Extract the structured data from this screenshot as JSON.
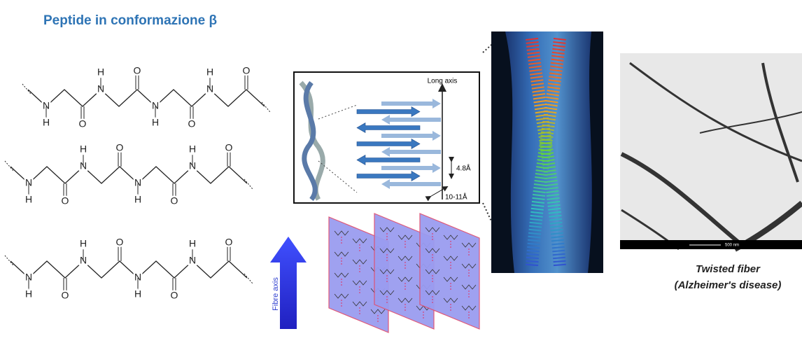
{
  "title": "Peptide in conformazione β",
  "peptides": [
    {
      "atoms": [
        "N",
        "H",
        "O",
        "N",
        "H",
        "O",
        "N",
        "H",
        "O",
        "N",
        "H",
        "O"
      ]
    },
    {
      "atoms": [
        "N",
        "H",
        "O",
        "N",
        "H",
        "O",
        "N",
        "H",
        "O",
        "N",
        "H",
        "O"
      ]
    },
    {
      "atoms": [
        "N",
        "H",
        "O",
        "N",
        "H",
        "O",
        "N",
        "H",
        "O",
        "N",
        "H",
        "O"
      ]
    }
  ],
  "fibril_diagram": {
    "long_axis": "Long axis",
    "strand_spacing": "4.8Å",
    "sheet_spacing": "10-11Å"
  },
  "sheet_stack": {
    "axis_label": "Fibre axis"
  },
  "micrograph": {
    "scale_bar": "500 nm",
    "caption": [
      "Twisted fiber",
      "(Alzheimer's disease)"
    ]
  }
}
